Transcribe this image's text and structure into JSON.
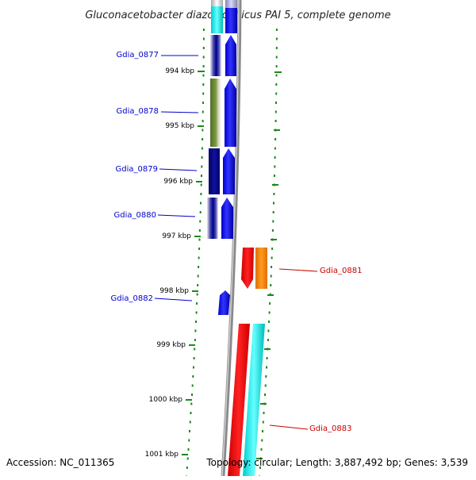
{
  "title": "Gluconacetobacter diazotrophicus PAI 5, complete genome",
  "footer": {
    "accession": "Accession: NC_011365",
    "topology": "Topology: circular; Length: 3,887,492 bp; Genes: 3,539"
  },
  "kbp_labels": [
    "994 kbp",
    "995 kbp",
    "996 kbp",
    "997 kbp",
    "998 kbp",
    "999 kbp",
    "1000 kbp",
    "1001 kbp"
  ],
  "genes": [
    {
      "id": "gdia-0877",
      "label": "Gdia_0877",
      "strand": "forward",
      "color": "#0000cc"
    },
    {
      "id": "gdia-0878",
      "label": "Gdia_0878",
      "strand": "forward",
      "color": "#0000cc"
    },
    {
      "id": "gdia-0879",
      "label": "Gdia_0879",
      "strand": "forward",
      "color": "#0000cc"
    },
    {
      "id": "gdia-0880",
      "label": "Gdia_0880",
      "strand": "forward",
      "color": "#0000cc"
    },
    {
      "id": "gdia-0881",
      "label": "Gdia_0881",
      "strand": "reverse",
      "color": "#cc0000"
    },
    {
      "id": "gdia-0882",
      "label": "Gdia_0882",
      "strand": "forward",
      "color": "#0000cc"
    },
    {
      "id": "gdia-0883",
      "label": "Gdia_0883",
      "strand": "reverse",
      "color": "#cc0000"
    }
  ],
  "colors": {
    "forward_cds": "#0000ff",
    "reverse_cds": "#ff0000",
    "orange_feature": "#ff8800",
    "cyan_feature": "#00ffff",
    "olive_feature": "#6b8e23",
    "navy_feature": "#000080",
    "backbone": "#808080",
    "ticks": "#1a8a1a"
  }
}
